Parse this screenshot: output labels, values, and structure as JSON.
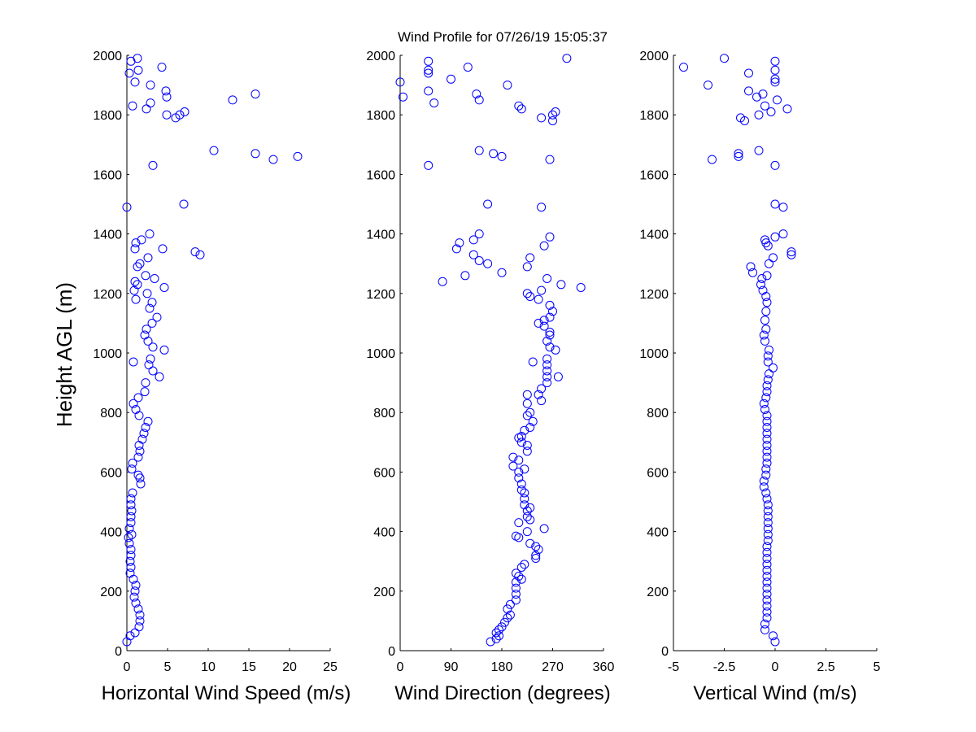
{
  "title": "Wind Profile for  07/26/19 15:05:37",
  "colors": {
    "marker": "#0000ff",
    "axis": "#000000",
    "background": "#ffffff"
  },
  "chart_data": [
    {
      "type": "scatter",
      "name": "speed",
      "xlabel": "Horizontal Wind Speed (m/s)",
      "ylabel": "Height AGL (m)",
      "xlim": [
        0,
        25
      ],
      "ylim": [
        0,
        2000
      ],
      "xticks": [
        0,
        5,
        10,
        15,
        20,
        25
      ],
      "xtick_labels": [
        "0",
        "5",
        "10",
        "15",
        "20",
        "25"
      ],
      "yticks": [
        0,
        200,
        400,
        600,
        800,
        1000,
        1200,
        1400,
        1600,
        1800,
        2000
      ],
      "ytick_labels": [
        "0",
        "200",
        "400",
        "600",
        "800",
        "1000",
        "1200",
        "1400",
        "1600",
        "1800",
        "2000"
      ],
      "points": [
        [
          0.0,
          30
        ],
        [
          0.4,
          50
        ],
        [
          1.0,
          60
        ],
        [
          1.5,
          80
        ],
        [
          1.6,
          100
        ],
        [
          1.6,
          120
        ],
        [
          1.4,
          140
        ],
        [
          1.1,
          160
        ],
        [
          0.9,
          180
        ],
        [
          1.0,
          200
        ],
        [
          1.1,
          220
        ],
        [
          0.8,
          240
        ],
        [
          0.4,
          260
        ],
        [
          0.5,
          280
        ],
        [
          0.4,
          300
        ],
        [
          0.5,
          320
        ],
        [
          0.5,
          340
        ],
        [
          0.3,
          360
        ],
        [
          0.2,
          380
        ],
        [
          0.6,
          390
        ],
        [
          0.3,
          410
        ],
        [
          0.5,
          430
        ],
        [
          0.5,
          450
        ],
        [
          0.6,
          470
        ],
        [
          0.5,
          490
        ],
        [
          0.5,
          510
        ],
        [
          0.7,
          530
        ],
        [
          1.7,
          560
        ],
        [
          1.6,
          580
        ],
        [
          1.4,
          590
        ],
        [
          0.6,
          610
        ],
        [
          0.7,
          630
        ],
        [
          1.4,
          650
        ],
        [
          1.6,
          670
        ],
        [
          1.5,
          690
        ],
        [
          1.9,
          710
        ],
        [
          2.1,
          730
        ],
        [
          2.3,
          750
        ],
        [
          2.6,
          770
        ],
        [
          1.5,
          790
        ],
        [
          1.1,
          810
        ],
        [
          0.8,
          830
        ],
        [
          1.4,
          850
        ],
        [
          2.2,
          870
        ],
        [
          2.3,
          900
        ],
        [
          4.0,
          920
        ],
        [
          3.2,
          940
        ],
        [
          2.7,
          960
        ],
        [
          0.8,
          970
        ],
        [
          2.9,
          980
        ],
        [
          4.6,
          1010
        ],
        [
          3.2,
          1020
        ],
        [
          2.6,
          1040
        ],
        [
          2.2,
          1060
        ],
        [
          2.4,
          1080
        ],
        [
          3.1,
          1100
        ],
        [
          3.7,
          1120
        ],
        [
          2.8,
          1150
        ],
        [
          3.1,
          1170
        ],
        [
          1.1,
          1180
        ],
        [
          2.5,
          1200
        ],
        [
          0.9,
          1210
        ],
        [
          4.6,
          1220
        ],
        [
          1.3,
          1230
        ],
        [
          1.0,
          1240
        ],
        [
          3.4,
          1250
        ],
        [
          2.3,
          1260
        ],
        [
          1.3,
          1290
        ],
        [
          1.6,
          1300
        ],
        [
          2.6,
          1320
        ],
        [
          9.0,
          1330
        ],
        [
          8.4,
          1340
        ],
        [
          1.0,
          1350
        ],
        [
          4.4,
          1350
        ],
        [
          1.1,
          1370
        ],
        [
          1.8,
          1380
        ],
        [
          2.8,
          1400
        ],
        [
          0.0,
          1490
        ],
        [
          7.0,
          1500
        ],
        [
          3.2,
          1630
        ],
        [
          18.0,
          1650
        ],
        [
          21.0,
          1660
        ],
        [
          15.8,
          1670
        ],
        [
          10.7,
          1680
        ],
        [
          4.9,
          1800
        ],
        [
          6.5,
          1800
        ],
        [
          7.1,
          1810
        ],
        [
          6.0,
          1790
        ],
        [
          2.4,
          1820
        ],
        [
          0.7,
          1830
        ],
        [
          2.9,
          1840
        ],
        [
          13.0,
          1850
        ],
        [
          15.8,
          1870
        ],
        [
          4.9,
          1860
        ],
        [
          4.8,
          1880
        ],
        [
          2.9,
          1900
        ],
        [
          1.0,
          1910
        ],
        [
          0.3,
          1940
        ],
        [
          1.4,
          1950
        ],
        [
          4.3,
          1960
        ],
        [
          0.5,
          1980
        ],
        [
          1.3,
          1990
        ]
      ]
    },
    {
      "type": "scatter",
      "name": "direction",
      "xlabel": "Wind Direction (degrees)",
      "xlim": [
        0,
        360
      ],
      "ylim": [
        0,
        2000
      ],
      "xticks": [
        0,
        90,
        180,
        270,
        360
      ],
      "xtick_labels": [
        "0",
        "90",
        "180",
        "270",
        "360"
      ],
      "yticks": [
        0,
        200,
        400,
        600,
        800,
        1000,
        1200,
        1400,
        1600,
        1800,
        2000
      ],
      "ytick_labels": [
        "0",
        "200",
        "400",
        "600",
        "800",
        "1000",
        "1200",
        "1400",
        "1600",
        "1800",
        "2000"
      ],
      "points": [
        [
          160,
          30
        ],
        [
          170,
          40
        ],
        [
          175,
          50
        ],
        [
          170,
          60
        ],
        [
          175,
          70
        ],
        [
          180,
          80
        ],
        [
          185,
          95
        ],
        [
          190,
          110
        ],
        [
          195,
          120
        ],
        [
          190,
          140
        ],
        [
          195,
          155
        ],
        [
          205,
          170
        ],
        [
          205,
          190
        ],
        [
          205,
          210
        ],
        [
          205,
          230
        ],
        [
          215,
          240
        ],
        [
          210,
          250
        ],
        [
          205,
          260
        ],
        [
          215,
          280
        ],
        [
          220,
          290
        ],
        [
          240,
          310
        ],
        [
          240,
          320
        ],
        [
          245,
          340
        ],
        [
          240,
          350
        ],
        [
          230,
          360
        ],
        [
          210,
          380
        ],
        [
          205,
          385
        ],
        [
          225,
          400
        ],
        [
          255,
          410
        ],
        [
          210,
          430
        ],
        [
          230,
          440
        ],
        [
          225,
          450
        ],
        [
          225,
          470
        ],
        [
          230,
          480
        ],
        [
          220,
          490
        ],
        [
          220,
          510
        ],
        [
          220,
          530
        ],
        [
          215,
          540
        ],
        [
          215,
          560
        ],
        [
          210,
          580
        ],
        [
          210,
          600
        ],
        [
          220,
          610
        ],
        [
          200,
          620
        ],
        [
          210,
          640
        ],
        [
          200,
          650
        ],
        [
          225,
          670
        ],
        [
          225,
          690
        ],
        [
          215,
          700
        ],
        [
          215,
          720
        ],
        [
          210,
          715
        ],
        [
          220,
          740
        ],
        [
          230,
          750
        ],
        [
          235,
          770
        ],
        [
          225,
          790
        ],
        [
          230,
          800
        ],
        [
          225,
          830
        ],
        [
          250,
          840
        ],
        [
          245,
          860
        ],
        [
          225,
          860
        ],
        [
          250,
          880
        ],
        [
          260,
          900
        ],
        [
          260,
          920
        ],
        [
          280,
          920
        ],
        [
          260,
          940
        ],
        [
          260,
          960
        ],
        [
          235,
          970
        ],
        [
          260,
          980
        ],
        [
          275,
          1010
        ],
        [
          265,
          1020
        ],
        [
          260,
          1040
        ],
        [
          265,
          1060
        ],
        [
          265,
          1070
        ],
        [
          255,
          1090
        ],
        [
          245,
          1100
        ],
        [
          255,
          1110
        ],
        [
          265,
          1120
        ],
        [
          270,
          1140
        ],
        [
          265,
          1160
        ],
        [
          245,
          1180
        ],
        [
          230,
          1190
        ],
        [
          225,
          1200
        ],
        [
          250,
          1210
        ],
        [
          285,
          1230
        ],
        [
          320,
          1220
        ],
        [
          75,
          1240
        ],
        [
          115,
          1260
        ],
        [
          260,
          1250
        ],
        [
          180,
          1270
        ],
        [
          225,
          1290
        ],
        [
          155,
          1300
        ],
        [
          140,
          1310
        ],
        [
          130,
          1330
        ],
        [
          230,
          1320
        ],
        [
          100,
          1350
        ],
        [
          255,
          1360
        ],
        [
          105,
          1370
        ],
        [
          130,
          1380
        ],
        [
          265,
          1390
        ],
        [
          140,
          1400
        ],
        [
          250,
          1490
        ],
        [
          155,
          1500
        ],
        [
          50,
          1630
        ],
        [
          265,
          1650
        ],
        [
          180,
          1660
        ],
        [
          165,
          1670
        ],
        [
          140,
          1680
        ],
        [
          270,
          1780
        ],
        [
          250,
          1790
        ],
        [
          270,
          1800
        ],
        [
          275,
          1810
        ],
        [
          215,
          1820
        ],
        [
          210,
          1830
        ],
        [
          60,
          1840
        ],
        [
          140,
          1850
        ],
        [
          5,
          1860
        ],
        [
          135,
          1870
        ],
        [
          50,
          1880
        ],
        [
          190,
          1900
        ],
        [
          0,
          1910
        ],
        [
          90,
          1920
        ],
        [
          50,
          1940
        ],
        [
          50,
          1950
        ],
        [
          120,
          1960
        ],
        [
          50,
          1980
        ],
        [
          295,
          1990
        ]
      ]
    },
    {
      "type": "scatter",
      "name": "vertical",
      "xlabel": "Vertical Wind (m/s)",
      "xlim": [
        -5,
        5
      ],
      "ylim": [
        0,
        2000
      ],
      "xticks": [
        -5,
        -2.5,
        0,
        2.5,
        5
      ],
      "xtick_labels": [
        "-5",
        "-2.5",
        "0",
        "2.5",
        "5"
      ],
      "yticks": [
        0,
        200,
        400,
        600,
        800,
        1000,
        1200,
        1400,
        1600,
        1800,
        2000
      ],
      "ytick_labels": [
        "0",
        "200",
        "400",
        "600",
        "800",
        "1000",
        "1200",
        "1400",
        "1600",
        "1800",
        "2000"
      ],
      "points": [
        [
          0.0,
          30
        ],
        [
          -0.1,
          50
        ],
        [
          -0.5,
          70
        ],
        [
          -0.5,
          90
        ],
        [
          -0.4,
          110
        ],
        [
          -0.4,
          130
        ],
        [
          -0.4,
          150
        ],
        [
          -0.4,
          170
        ],
        [
          -0.4,
          190
        ],
        [
          -0.4,
          210
        ],
        [
          -0.4,
          230
        ],
        [
          -0.4,
          250
        ],
        [
          -0.4,
          270
        ],
        [
          -0.4,
          290
        ],
        [
          -0.4,
          310
        ],
        [
          -0.4,
          330
        ],
        [
          -0.4,
          350
        ],
        [
          -0.35,
          370
        ],
        [
          -0.35,
          390
        ],
        [
          -0.35,
          410
        ],
        [
          -0.35,
          430
        ],
        [
          -0.35,
          450
        ],
        [
          -0.35,
          470
        ],
        [
          -0.35,
          490
        ],
        [
          -0.4,
          510
        ],
        [
          -0.45,
          530
        ],
        [
          -0.55,
          550
        ],
        [
          -0.55,
          570
        ],
        [
          -0.45,
          590
        ],
        [
          -0.45,
          610
        ],
        [
          -0.4,
          630
        ],
        [
          -0.4,
          650
        ],
        [
          -0.4,
          670
        ],
        [
          -0.4,
          690
        ],
        [
          -0.4,
          710
        ],
        [
          -0.4,
          730
        ],
        [
          -0.4,
          750
        ],
        [
          -0.4,
          770
        ],
        [
          -0.4,
          790
        ],
        [
          -0.5,
          810
        ],
        [
          -0.55,
          830
        ],
        [
          -0.45,
          850
        ],
        [
          -0.4,
          870
        ],
        [
          -0.4,
          890
        ],
        [
          -0.35,
          910
        ],
        [
          -0.3,
          930
        ],
        [
          -0.1,
          950
        ],
        [
          -0.35,
          970
        ],
        [
          -0.35,
          990
        ],
        [
          -0.3,
          1010
        ],
        [
          -0.5,
          1040
        ],
        [
          -0.55,
          1060
        ],
        [
          -0.45,
          1080
        ],
        [
          -0.5,
          1110
        ],
        [
          -0.45,
          1140
        ],
        [
          -0.4,
          1170
        ],
        [
          -0.45,
          1190
        ],
        [
          -0.6,
          1210
        ],
        [
          -0.7,
          1230
        ],
        [
          -0.65,
          1250
        ],
        [
          -0.4,
          1260
        ],
        [
          -1.1,
          1270
        ],
        [
          -1.2,
          1290
        ],
        [
          -0.3,
          1300
        ],
        [
          -0.1,
          1320
        ],
        [
          0.8,
          1330
        ],
        [
          0.8,
          1340
        ],
        [
          -0.35,
          1360
        ],
        [
          -0.45,
          1370
        ],
        [
          -0.5,
          1380
        ],
        [
          0.0,
          1390
        ],
        [
          0.4,
          1400
        ],
        [
          0.4,
          1490
        ],
        [
          0.0,
          1500
        ],
        [
          0.0,
          1630
        ],
        [
          -3.1,
          1650
        ],
        [
          -1.8,
          1660
        ],
        [
          -1.8,
          1670
        ],
        [
          -0.8,
          1680
        ],
        [
          -1.5,
          1780
        ],
        [
          -1.7,
          1790
        ],
        [
          -0.8,
          1800
        ],
        [
          -0.2,
          1810
        ],
        [
          -0.5,
          1830
        ],
        [
          0.6,
          1820
        ],
        [
          0.1,
          1850
        ],
        [
          -0.9,
          1860
        ],
        [
          -0.6,
          1870
        ],
        [
          -1.3,
          1880
        ],
        [
          -3.3,
          1900
        ],
        [
          0.0,
          1910
        ],
        [
          0.0,
          1920
        ],
        [
          -1.3,
          1940
        ],
        [
          0.0,
          1950
        ],
        [
          -4.5,
          1960
        ],
        [
          0.0,
          1980
        ],
        [
          -2.5,
          1990
        ]
      ]
    }
  ]
}
